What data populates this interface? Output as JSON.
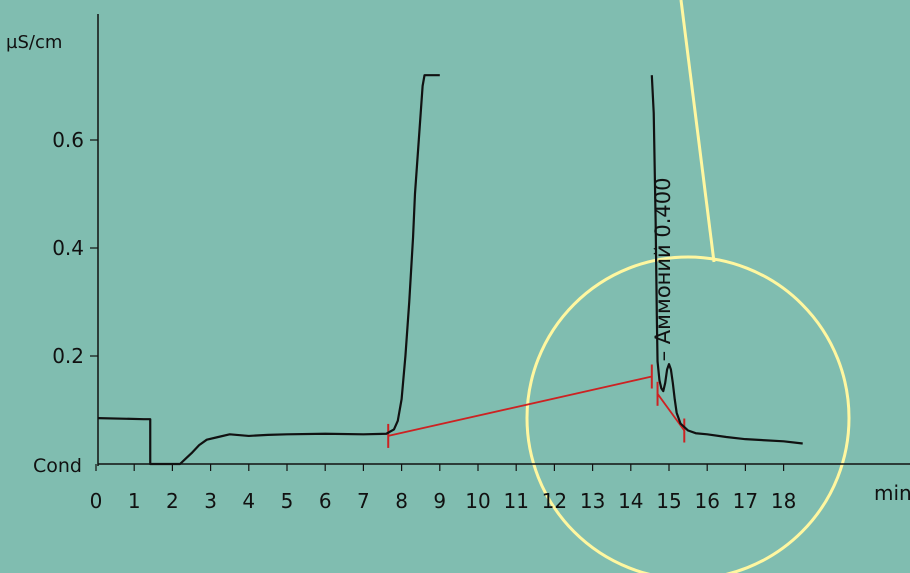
{
  "chart_data": {
    "type": "line",
    "title": "",
    "xlabel": "min",
    "ylabel": "µS/cm",
    "y_axis_name": "Cond",
    "xlim": [
      0,
      18.5
    ],
    "ylim": [
      0,
      0.72
    ],
    "x_ticks": [
      "0",
      "1",
      "2",
      "3",
      "4",
      "5",
      "6",
      "7",
      "8",
      "9",
      "10",
      "11",
      "12",
      "13",
      "14",
      "15",
      "16",
      "17",
      "18"
    ],
    "y_ticks": [
      {
        "label": "0.2",
        "value": 0.2
      },
      {
        "label": "0.4",
        "value": 0.4
      },
      {
        "label": "0.6",
        "value": 0.6
      }
    ],
    "series": [
      {
        "color": "#111111",
        "x": [
          0.05,
          1.25,
          1.25,
          1.25,
          1.3,
          1.35,
          1.4,
          1.42,
          1.42,
          1.42,
          2.2,
          2.35,
          2.5,
          2.7,
          2.9,
          3.2,
          3.5,
          4.0,
          4.5,
          5.0,
          6.0,
          7.0,
          7.6,
          7.8,
          7.9,
          8.0,
          8.1,
          8.2,
          8.3,
          8.35,
          8.4,
          8.45,
          8.5,
          8.55,
          8.6,
          8.62,
          8.64,
          8.66,
          8.68,
          8.7,
          8.72,
          8.74,
          8.76,
          8.78,
          8.8,
          8.82,
          8.84,
          8.86,
          8.88,
          8.9,
          8.92,
          8.94,
          8.96,
          8.98,
          9.0
        ],
        "y": [
          0.085,
          0.083,
          0.083,
          0.083,
          0.083,
          0.083,
          0.083,
          0.083,
          0.04,
          0.0,
          0.0,
          0.01,
          0.02,
          0.035,
          0.045,
          0.05,
          0.055,
          0.052,
          0.054,
          0.055,
          0.056,
          0.055,
          0.056,
          0.064,
          0.08,
          0.12,
          0.2,
          0.3,
          0.42,
          0.5,
          0.55,
          0.6,
          0.65,
          0.7,
          0.72,
          0.72,
          0.72,
          0.72,
          0.72,
          0.72,
          0.72,
          0.72,
          0.72,
          0.72,
          0.72,
          0.72,
          0.72,
          0.72,
          0.72,
          0.72,
          0.72,
          0.72,
          0.72,
          0.72,
          0.72
        ]
      },
      {
        "color": "#111111",
        "x": [
          14.55,
          14.6,
          14.65,
          14.68,
          14.7,
          14.75,
          14.8,
          14.85,
          14.9,
          14.95,
          15.0,
          15.05,
          15.1,
          15.15,
          15.2,
          15.3,
          15.5,
          15.7,
          16.0,
          16.5,
          17.0,
          17.5,
          18.0,
          18.5
        ],
        "y": [
          0.72,
          0.65,
          0.45,
          0.28,
          0.19,
          0.155,
          0.14,
          0.135,
          0.15,
          0.175,
          0.185,
          0.175,
          0.15,
          0.12,
          0.095,
          0.075,
          0.062,
          0.057,
          0.055,
          0.05,
          0.046,
          0.044,
          0.042,
          0.038
        ]
      }
    ],
    "baseline": {
      "color": "#cc2222",
      "x": [
        7.65,
        14.55
      ],
      "y": [
        0.052,
        0.162
      ]
    },
    "peak_base": {
      "color": "#cc2222",
      "x": [
        14.7,
        15.4
      ],
      "y": [
        0.13,
        0.062
      ]
    },
    "peak_label": "Аммоний 0.400",
    "peak_label_x": 14.95,
    "highlight_color": "#fff7a0",
    "background_color": "#80bdb0",
    "grid": false,
    "legend": "none"
  }
}
